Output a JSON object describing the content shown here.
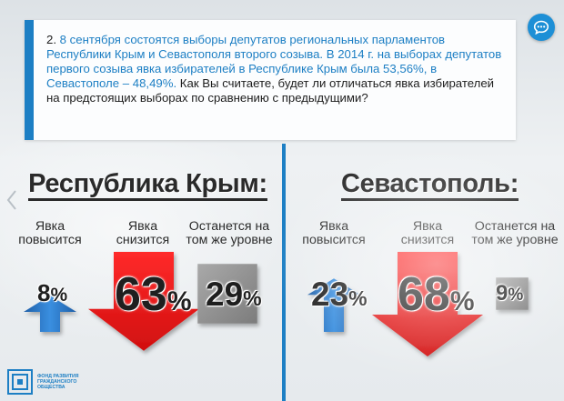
{
  "question": {
    "number": "2.",
    "text_blue": "8 сентября состоятся выборы депутатов региональных парламентов Республики Крым и Севастополя второго созыва. В 2014 г. на выборах депутатов первого созыва явка избирателей в Республике Крым была 53,56%, в Севастополе – 48,49%.",
    "text_dark": " Как Вы считаете, будет ли отличаться явка избирателей на предстоящих выборах по сравнению с предыдущими?"
  },
  "logo": {
    "line1": "ФОНД РАЗВИТИЯ",
    "line2": "ГРАЖДАНСКОГО",
    "line3": "ОБЩЕСТВА"
  },
  "colors": {
    "accent": "#1d7fc4",
    "up": "#2f78c5",
    "down": "#ec1c1c",
    "same": "#8e8e8e"
  },
  "icons": {
    "chat": "chat-bubble-icon",
    "prev": "chevron-left-icon"
  },
  "chart_data": [
    {
      "type": "bar",
      "title": "Республика Крым:",
      "categories": [
        "Явка повысится",
        "Явка снизится",
        "Останется на том же уровне"
      ],
      "values": [
        8,
        63,
        29
      ],
      "value_labels": [
        "8",
        "63",
        "29"
      ],
      "unit": "%"
    },
    {
      "type": "bar",
      "title": "Севастополь:",
      "categories": [
        "Явка повысится",
        "Явка снизится",
        "Останется на том же уровне"
      ],
      "values": [
        23,
        68,
        9
      ],
      "value_labels": [
        "23",
        "68",
        "9"
      ],
      "unit": "%"
    }
  ]
}
